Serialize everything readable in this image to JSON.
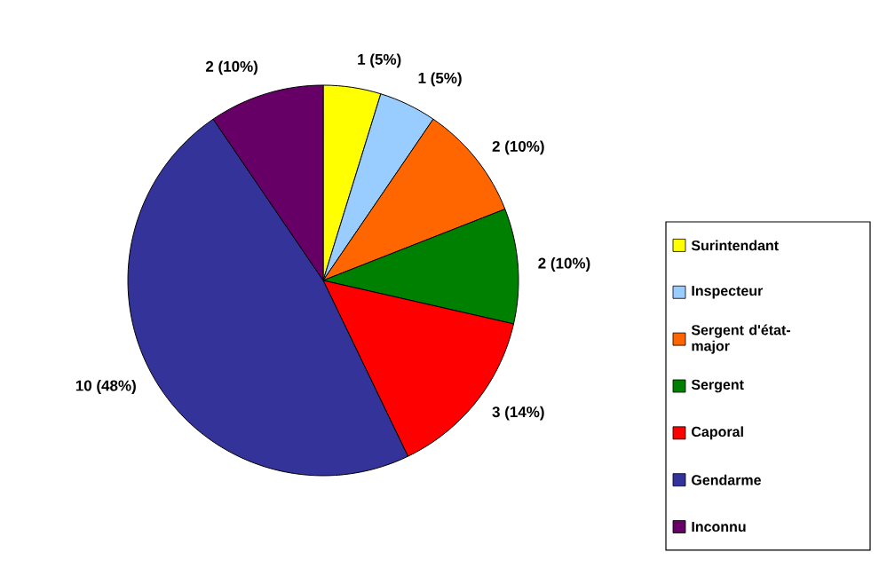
{
  "chart_data": {
    "type": "pie",
    "categories": [
      "Surintendant",
      "Inspecteur",
      "Sergent d'état-major",
      "Sergent",
      "Caporal",
      "Gendarme",
      "Inconnu"
    ],
    "values": [
      1,
      1,
      2,
      2,
      3,
      10,
      2
    ],
    "value_labels": [
      "1 (5%)",
      "1 (5%)",
      "2 (10%)",
      "2 (10%)",
      "3 (14%)",
      "10 (48%)",
      "2 (10%)"
    ],
    "colors": [
      "#ffff00",
      "#99ccff",
      "#ff6600",
      "#008000",
      "#ff0000",
      "#333399",
      "#660066"
    ],
    "legend": "right"
  }
}
